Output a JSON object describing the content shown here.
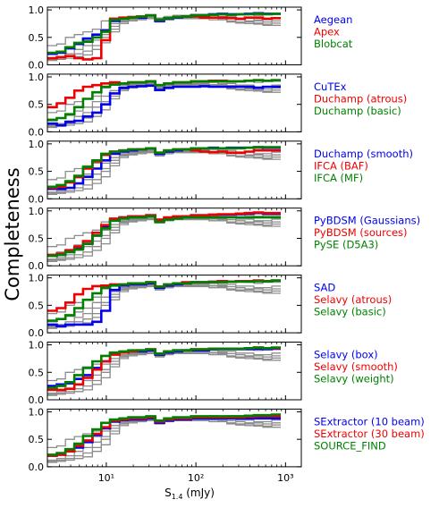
{
  "figure": {
    "ylabel": "Completeness",
    "xlabel_main": "S",
    "xlabel_sub": "1.4",
    "xlabel_unit": " (mJy)",
    "x_tick_labels": [
      "10¹",
      "10²",
      "10³"
    ],
    "y_tick_labels": [
      "0.0",
      "0.5",
      "1.0"
    ]
  },
  "chart_data": {
    "type": "line",
    "style": "step",
    "xscale": "log",
    "xlim": [
      2.2,
      1500
    ],
    "ylim": [
      0,
      1.05
    ],
    "x_ticks": [
      10,
      100,
      1000
    ],
    "y_ticks": [
      0,
      0.5,
      1.0
    ],
    "grid": false,
    "legend_position": "right of each panel",
    "colors": {
      "blue": "#0000ee",
      "red": "#ee0000",
      "green": "#008000",
      "gray": "#8c8c8c"
    },
    "bins": [
      2.2,
      2.8,
      3.5,
      4.4,
      5.5,
      7.0,
      8.8,
      11.0,
      14.0,
      17.6,
      22.1,
      27.9,
      35.1,
      44.2,
      55.7,
      70.1,
      88.3,
      111,
      140,
      176,
      222,
      279,
      352,
      443,
      558,
      703,
      885
    ],
    "gray_series": [
      [
        0.35,
        0.38,
        0.5,
        0.55,
        0.6,
        0.65,
        0.8,
        0.85,
        0.85,
        0.88,
        0.88,
        0.9,
        0.85,
        0.88,
        0.9,
        0.9,
        0.92,
        0.92,
        0.93,
        0.92,
        0.93,
        0.93,
        0.92,
        0.9,
        0.92,
        0.92
      ],
      [
        0.2,
        0.25,
        0.3,
        0.38,
        0.45,
        0.55,
        0.65,
        0.75,
        0.82,
        0.86,
        0.88,
        0.9,
        0.85,
        0.86,
        0.88,
        0.88,
        0.9,
        0.9,
        0.9,
        0.88,
        0.88,
        0.85,
        0.85,
        0.82,
        0.82,
        0.85
      ],
      [
        0.12,
        0.15,
        0.2,
        0.28,
        0.35,
        0.45,
        0.55,
        0.7,
        0.8,
        0.84,
        0.86,
        0.88,
        0.82,
        0.85,
        0.86,
        0.86,
        0.88,
        0.88,
        0.86,
        0.86,
        0.84,
        0.82,
        0.8,
        0.8,
        0.78,
        0.8
      ],
      [
        0.1,
        0.12,
        0.15,
        0.2,
        0.25,
        0.35,
        0.5,
        0.65,
        0.78,
        0.82,
        0.84,
        0.86,
        0.8,
        0.84,
        0.86,
        0.86,
        0.86,
        0.86,
        0.85,
        0.84,
        0.8,
        0.78,
        0.78,
        0.76,
        0.74,
        0.76
      ],
      [
        0.08,
        0.1,
        0.12,
        0.15,
        0.18,
        0.28,
        0.4,
        0.6,
        0.75,
        0.8,
        0.82,
        0.84,
        0.78,
        0.82,
        0.84,
        0.84,
        0.84,
        0.84,
        0.82,
        0.82,
        0.78,
        0.76,
        0.75,
        0.74,
        0.72,
        0.72
      ]
    ],
    "panels": [
      {
        "series": [
          {
            "name": "Aegean",
            "color": "#0000ee",
            "values": [
              0.2,
              0.22,
              0.3,
              0.38,
              0.48,
              0.55,
              0.62,
              0.8,
              0.85,
              0.86,
              0.86,
              0.9,
              0.8,
              0.84,
              0.86,
              0.88,
              0.9,
              0.9,
              0.92,
              0.93,
              0.92,
              0.92,
              0.93,
              0.94,
              0.93,
              0.93
            ]
          },
          {
            "name": "Apex",
            "color": "#ee0000",
            "values": [
              0.12,
              0.14,
              0.16,
              0.12,
              0.1,
              0.12,
              0.45,
              0.84,
              0.86,
              0.87,
              0.88,
              0.9,
              0.82,
              0.85,
              0.87,
              0.88,
              0.88,
              0.86,
              0.86,
              0.86,
              0.85,
              0.84,
              0.86,
              0.86,
              0.84,
              0.85
            ]
          },
          {
            "name": "Blobcat",
            "color": "#008000",
            "values": [
              0.22,
              0.24,
              0.32,
              0.4,
              0.42,
              0.5,
              0.6,
              0.82,
              0.84,
              0.86,
              0.88,
              0.9,
              0.82,
              0.85,
              0.87,
              0.88,
              0.9,
              0.9,
              0.91,
              0.92,
              0.91,
              0.92,
              0.92,
              0.93,
              0.92,
              0.93
            ]
          }
        ]
      },
      {
        "series": [
          {
            "name": "CuTEx",
            "color": "#0000ee",
            "values": [
              0.15,
              0.12,
              0.18,
              0.2,
              0.28,
              0.35,
              0.5,
              0.7,
              0.8,
              0.82,
              0.83,
              0.84,
              0.76,
              0.8,
              0.82,
              0.82,
              0.82,
              0.83,
              0.82,
              0.82,
              0.82,
              0.82,
              0.82,
              0.8,
              0.82,
              0.82
            ]
          },
          {
            "name": "Duchamp (atrous)",
            "color": "#ee0000",
            "values": [
              0.45,
              0.52,
              0.62,
              0.75,
              0.82,
              0.85,
              0.88,
              0.9,
              0.88,
              0.9,
              0.9,
              0.92,
              0.85,
              0.88,
              0.9,
              0.9,
              0.92,
              0.92,
              0.93,
              0.93,
              0.92,
              0.92,
              0.93,
              0.94,
              0.93,
              0.94
            ]
          },
          {
            "name": "Duchamp (basic)",
            "color": "#008000",
            "values": [
              0.22,
              0.25,
              0.32,
              0.45,
              0.6,
              0.72,
              0.82,
              0.86,
              0.88,
              0.9,
              0.9,
              0.92,
              0.85,
              0.88,
              0.9,
              0.9,
              0.92,
              0.92,
              0.92,
              0.92,
              0.92,
              0.92,
              0.93,
              0.94,
              0.93,
              0.94
            ]
          }
        ]
      },
      {
        "series": [
          {
            "name": "Duchamp (smooth)",
            "color": "#0000ee",
            "values": [
              0.18,
              0.18,
              0.2,
              0.28,
              0.4,
              0.55,
              0.7,
              0.82,
              0.86,
              0.88,
              0.9,
              0.92,
              0.82,
              0.86,
              0.88,
              0.9,
              0.92,
              0.92,
              0.93,
              0.92,
              0.93,
              0.93,
              0.93,
              0.94,
              0.93,
              0.93
            ]
          },
          {
            "name": "IFCA (BAF)",
            "color": "#ee0000",
            "values": [
              0.2,
              0.22,
              0.3,
              0.4,
              0.55,
              0.68,
              0.8,
              0.86,
              0.88,
              0.9,
              0.9,
              0.92,
              0.84,
              0.88,
              0.9,
              0.9,
              0.88,
              0.86,
              0.85,
              0.86,
              0.84,
              0.84,
              0.86,
              0.88,
              0.88,
              0.88
            ]
          },
          {
            "name": "IFCA (MF)",
            "color": "#008000",
            "values": [
              0.22,
              0.25,
              0.32,
              0.42,
              0.58,
              0.7,
              0.82,
              0.86,
              0.88,
              0.9,
              0.9,
              0.92,
              0.84,
              0.88,
              0.9,
              0.9,
              0.92,
              0.92,
              0.92,
              0.92,
              0.92,
              0.92,
              0.93,
              0.94,
              0.94,
              0.94
            ]
          }
        ]
      },
      {
        "series": [
          {
            "name": "PyBDSM (Gaussians)",
            "color": "#0000ee",
            "values": [
              0.18,
              0.2,
              0.25,
              0.32,
              0.4,
              0.55,
              0.7,
              0.84,
              0.88,
              0.9,
              0.9,
              0.92,
              0.82,
              0.86,
              0.88,
              0.9,
              0.92,
              0.92,
              0.93,
              0.93,
              0.93,
              0.94,
              0.95,
              0.96,
              0.95,
              0.95
            ]
          },
          {
            "name": "PyBDSM (sources)",
            "color": "#ee0000",
            "values": [
              0.2,
              0.22,
              0.28,
              0.35,
              0.45,
              0.6,
              0.74,
              0.86,
              0.88,
              0.9,
              0.9,
              0.92,
              0.84,
              0.88,
              0.9,
              0.9,
              0.92,
              0.92,
              0.93,
              0.94,
              0.94,
              0.95,
              0.96,
              0.97,
              0.96,
              0.96
            ]
          },
          {
            "name": "PySE (D5A3)",
            "color": "#008000",
            "values": [
              0.18,
              0.2,
              0.25,
              0.3,
              0.4,
              0.55,
              0.68,
              0.82,
              0.86,
              0.88,
              0.88,
              0.9,
              0.8,
              0.84,
              0.86,
              0.88,
              0.88,
              0.88,
              0.88,
              0.88,
              0.88,
              0.88,
              0.88,
              0.88,
              0.88,
              0.88
            ]
          }
        ]
      },
      {
        "series": [
          {
            "name": "SAD",
            "color": "#0000ee",
            "values": [
              0.15,
              0.12,
              0.15,
              0.15,
              0.15,
              0.2,
              0.4,
              0.78,
              0.86,
              0.88,
              0.88,
              0.9,
              0.82,
              0.86,
              0.88,
              0.9,
              0.92,
              0.92,
              0.93,
              0.94,
              0.93,
              0.94,
              0.94,
              0.95,
              0.94,
              0.95
            ]
          },
          {
            "name": "Selavy (atrous)",
            "color": "#ee0000",
            "values": [
              0.4,
              0.45,
              0.55,
              0.7,
              0.8,
              0.85,
              0.86,
              0.88,
              0.88,
              0.9,
              0.9,
              0.92,
              0.84,
              0.88,
              0.9,
              0.92,
              0.92,
              0.92,
              0.93,
              0.94,
              0.93,
              0.94,
              0.94,
              0.95,
              0.94,
              0.95
            ]
          },
          {
            "name": "Selavy (basic)",
            "color": "#008000",
            "values": [
              0.22,
              0.25,
              0.32,
              0.45,
              0.6,
              0.72,
              0.82,
              0.86,
              0.88,
              0.9,
              0.9,
              0.92,
              0.84,
              0.88,
              0.9,
              0.9,
              0.92,
              0.92,
              0.92,
              0.92,
              0.93,
              0.93,
              0.93,
              0.94,
              0.94,
              0.95
            ]
          }
        ]
      },
      {
        "series": [
          {
            "name": "Selavy (box)",
            "color": "#0000ee",
            "values": [
              0.25,
              0.28,
              0.3,
              0.38,
              0.45,
              0.58,
              0.7,
              0.84,
              0.86,
              0.88,
              0.88,
              0.9,
              0.82,
              0.86,
              0.88,
              0.9,
              0.9,
              0.9,
              0.92,
              0.92,
              0.92,
              0.92,
              0.92,
              0.93,
              0.92,
              0.93
            ]
          },
          {
            "name": "Selavy (smooth)",
            "color": "#ee0000",
            "values": [
              0.18,
              0.18,
              0.2,
              0.28,
              0.4,
              0.55,
              0.7,
              0.82,
              0.86,
              0.88,
              0.9,
              0.92,
              0.84,
              0.88,
              0.9,
              0.9,
              0.92,
              0.92,
              0.93,
              0.93,
              0.93,
              0.93,
              0.94,
              0.95,
              0.94,
              0.94
            ]
          },
          {
            "name": "Selavy (weight)",
            "color": "#008000",
            "values": [
              0.22,
              0.25,
              0.32,
              0.45,
              0.58,
              0.7,
              0.8,
              0.86,
              0.88,
              0.9,
              0.9,
              0.92,
              0.84,
              0.88,
              0.9,
              0.9,
              0.92,
              0.92,
              0.93,
              0.93,
              0.93,
              0.93,
              0.94,
              0.95,
              0.94,
              0.95
            ]
          }
        ]
      },
      {
        "series": [
          {
            "name": "SExtractor (10 beam)",
            "color": "#0000ee",
            "values": [
              0.2,
              0.22,
              0.28,
              0.35,
              0.45,
              0.58,
              0.7,
              0.82,
              0.85,
              0.86,
              0.86,
              0.88,
              0.8,
              0.84,
              0.86,
              0.86,
              0.88,
              0.88,
              0.88,
              0.88,
              0.88,
              0.88,
              0.88,
              0.88,
              0.88,
              0.88
            ]
          },
          {
            "name": "SExtractor (30 beam)",
            "color": "#ee0000",
            "values": [
              0.2,
              0.22,
              0.28,
              0.38,
              0.48,
              0.6,
              0.72,
              0.84,
              0.86,
              0.88,
              0.88,
              0.9,
              0.82,
              0.86,
              0.88,
              0.88,
              0.9,
              0.9,
              0.9,
              0.9,
              0.9,
              0.9,
              0.91,
              0.92,
              0.92,
              0.92
            ]
          },
          {
            "name": "SOURCE_FIND",
            "color": "#008000",
            "values": [
              0.22,
              0.25,
              0.32,
              0.42,
              0.56,
              0.68,
              0.8,
              0.86,
              0.88,
              0.9,
              0.9,
              0.92,
              0.84,
              0.88,
              0.9,
              0.9,
              0.92,
              0.92,
              0.92,
              0.92,
              0.92,
              0.92,
              0.93,
              0.94,
              0.94,
              0.95
            ]
          }
        ]
      }
    ]
  }
}
